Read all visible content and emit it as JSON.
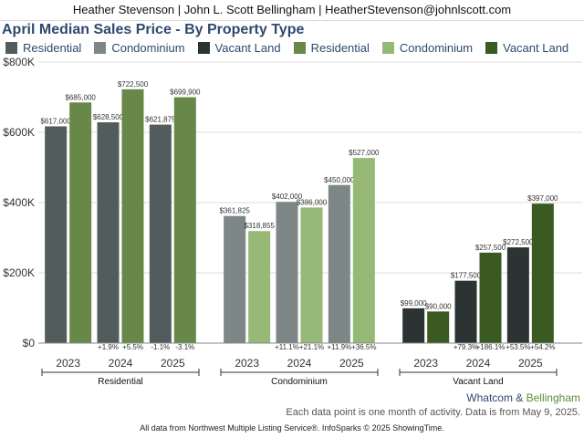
{
  "header": {
    "agent_line": "Heather Stevenson | John L. Scott Bellingham | HeatherStevenson@johnlscott.com"
  },
  "chart_data": {
    "type": "bar",
    "title": "April Median Sales Price - By Property Type",
    "legend": [
      {
        "label": "Residential",
        "color": "#535c5c"
      },
      {
        "label": "Condominium",
        "color": "#7d8787"
      },
      {
        "label": "Vacant Land",
        "color": "#2b3433"
      },
      {
        "label": "Residential",
        "color": "#68884a"
      },
      {
        "label": "Condominium",
        "color": "#96b978"
      },
      {
        "label": "Vacant Land",
        "color": "#3a5a22"
      }
    ],
    "ylim": [
      0,
      800000
    ],
    "yticks": [
      {
        "value": 0,
        "label": "$0"
      },
      {
        "value": 200000,
        "label": "$200K"
      },
      {
        "value": 400000,
        "label": "$400K"
      },
      {
        "value": 600000,
        "label": "$600K"
      },
      {
        "value": 800000,
        "label": "$800K"
      }
    ],
    "grid": true,
    "groups": [
      {
        "name": "Residential",
        "years": [
          {
            "year": "2023",
            "values": [
              617000,
              685000
            ],
            "labels": [
              "$617,000",
              "$685,000"
            ],
            "changes": [
              "",
              ""
            ],
            "colors": [
              "#535c5c",
              "#68884a"
            ]
          },
          {
            "year": "2024",
            "values": [
              628500,
              722500
            ],
            "labels": [
              "$628,500",
              "$722,500"
            ],
            "changes": [
              "+1.9%",
              "+5.5%"
            ],
            "colors": [
              "#535c5c",
              "#68884a"
            ]
          },
          {
            "year": "2025",
            "values": [
              621875,
              699900
            ],
            "labels": [
              "$621,875",
              "$699,900"
            ],
            "changes": [
              "-1.1%",
              "-3.1%"
            ],
            "colors": [
              "#535c5c",
              "#68884a"
            ]
          }
        ]
      },
      {
        "name": "Condominium",
        "years": [
          {
            "year": "2023",
            "values": [
              361825,
              318855
            ],
            "labels": [
              "$361,825",
              "$318,855"
            ],
            "changes": [
              "",
              ""
            ],
            "colors": [
              "#7d8787",
              "#96b978"
            ]
          },
          {
            "year": "2024",
            "values": [
              402000,
              386000
            ],
            "labels": [
              "$402,000",
              "$386,000"
            ],
            "changes": [
              "+11.1%",
              "+21.1%"
            ],
            "colors": [
              "#7d8787",
              "#96b978"
            ]
          },
          {
            "year": "2025",
            "values": [
              450000,
              527000
            ],
            "labels": [
              "$450,000",
              "$527,000"
            ],
            "changes": [
              "+11.9%",
              "+36.5%"
            ],
            "colors": [
              "#7d8787",
              "#96b978"
            ]
          }
        ]
      },
      {
        "name": "Vacant Land",
        "years": [
          {
            "year": "2023",
            "values": [
              99000,
              90000
            ],
            "labels": [
              "$99,000",
              "$90,000"
            ],
            "changes": [
              "",
              ""
            ],
            "colors": [
              "#2b3433",
              "#3a5a22"
            ]
          },
          {
            "year": "2024",
            "values": [
              177500,
              257500
            ],
            "labels": [
              "$177,500",
              "$257,500"
            ],
            "changes": [
              "+79.3%",
              "+186.1%"
            ],
            "colors": [
              "#2b3433",
              "#3a5a22"
            ]
          },
          {
            "year": "2025",
            "values": [
              272500,
              397000
            ],
            "labels": [
              "$272,500",
              "$397,000"
            ],
            "changes": [
              "+53.5%",
              "+54.2%"
            ],
            "colors": [
              "#2b3433",
              "#3a5a22"
            ]
          }
        ]
      }
    ]
  },
  "notes": {
    "source_whatcom": "Whatcom",
    "source_amp": " & ",
    "source_bellingham": "Bellingham",
    "activity": "Each data point is one month of activity. Data is from May 9, 2025.",
    "footer": "All data from Northwest Multiple Listing Service®. InfoSparks © 2025 ShowingTime."
  }
}
